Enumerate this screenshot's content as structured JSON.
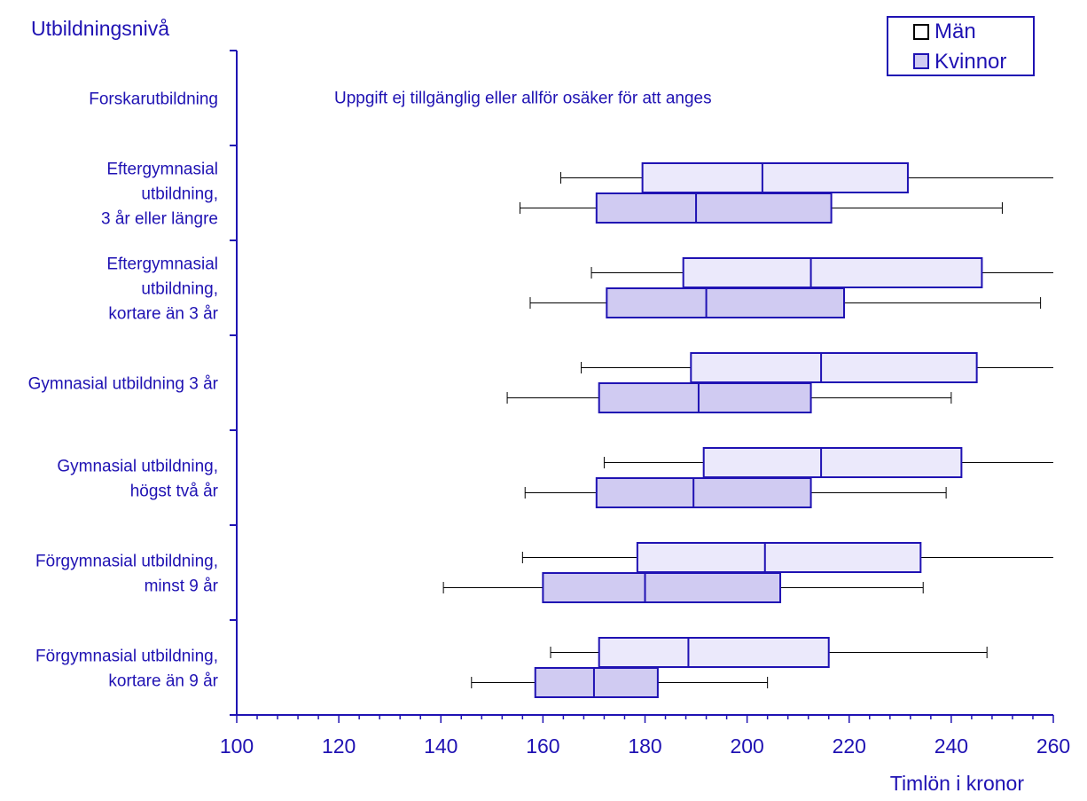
{
  "chart_data": {
    "type": "boxplot",
    "orientation": "horizontal",
    "ylabel": "Utbildningsnivå",
    "xlabel": "Timlön i kronor",
    "xlim": [
      100,
      260
    ],
    "xticks": [
      100,
      120,
      140,
      160,
      180,
      200,
      220,
      240,
      260
    ],
    "legend": {
      "position": "top-right"
    },
    "colors": {
      "axis": "#1f12b3",
      "text": "#1f12b3",
      "box_border": "#1f12b3",
      "whisker": "#000000",
      "men_fill": "#ebe9fb",
      "women_fill": "#d0cbf2"
    },
    "series": [
      {
        "name": "Män",
        "key": "men"
      },
      {
        "name": "Kvinnor",
        "key": "women"
      }
    ],
    "categories": [
      {
        "label": [
          "Forskarutbildning"
        ],
        "note": "Uppgift ej tillgänglig eller allför osäker för att anges",
        "men": null,
        "women": null
      },
      {
        "label": [
          "Eftergymnasial",
          "utbildning,",
          "3 år eller längre"
        ],
        "men": {
          "min": 163.5,
          "q1": 179.5,
          "median": 203.0,
          "q3": 231.5,
          "max": 260.0
        },
        "women": {
          "min": 155.5,
          "q1": 170.5,
          "median": 190.0,
          "q3": 216.5,
          "max": 250.0
        }
      },
      {
        "label": [
          "Eftergymnasial",
          "utbildning,",
          "kortare än 3 år"
        ],
        "men": {
          "min": 169.5,
          "q1": 187.5,
          "median": 212.5,
          "q3": 246.0,
          "max": 260.0
        },
        "women": {
          "min": 157.5,
          "q1": 172.5,
          "median": 192.0,
          "q3": 219.0,
          "max": 257.5
        }
      },
      {
        "label": [
          "Gymnasial utbildning 3 år"
        ],
        "men": {
          "min": 167.5,
          "q1": 189.0,
          "median": 214.5,
          "q3": 245.0,
          "max": 260.0
        },
        "women": {
          "min": 153.0,
          "q1": 171.0,
          "median": 190.5,
          "q3": 212.5,
          "max": 240.0
        }
      },
      {
        "label": [
          "Gymnasial utbildning,",
          "högst två år"
        ],
        "men": {
          "min": 172.0,
          "q1": 191.5,
          "median": 214.5,
          "q3": 242.0,
          "max": 260.0
        },
        "women": {
          "min": 156.5,
          "q1": 170.5,
          "median": 189.5,
          "q3": 212.5,
          "max": 239.0
        }
      },
      {
        "label": [
          "Förgymnasial utbildning,",
          "minst 9 år"
        ],
        "men": {
          "min": 156.0,
          "q1": 178.5,
          "median": 203.5,
          "q3": 234.0,
          "max": 260.0
        },
        "women": {
          "min": 140.5,
          "q1": 160.0,
          "median": 180.0,
          "q3": 206.5,
          "max": 234.5
        }
      },
      {
        "label": [
          "Förgymnasial utbildning,",
          "kortare än 9 år"
        ],
        "men": {
          "min": 161.5,
          "q1": 171.0,
          "median": 188.5,
          "q3": 216.0,
          "max": 247.0
        },
        "women": {
          "min": 146.0,
          "q1": 158.5,
          "median": 170.0,
          "q3": 182.5,
          "max": 204.0
        }
      }
    ]
  }
}
